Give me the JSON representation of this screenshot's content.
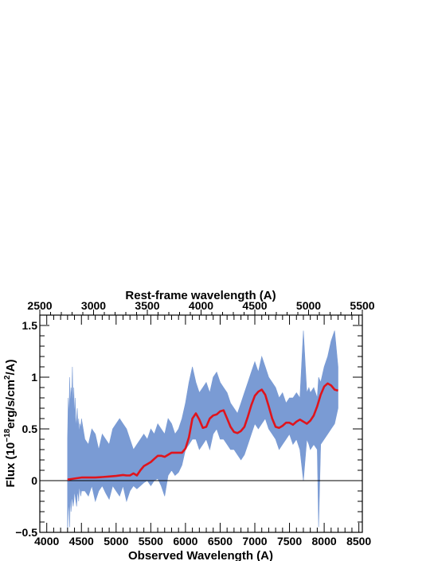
{
  "chart_data": {
    "type": "line",
    "xlabel": "Observed Wavelength (A)",
    "xlabel_top": "Rest-frame wavelength (A)",
    "ylabel_pre": "Flux (10",
    "ylabel_sup1": "−18",
    "ylabel_mid": "erg/s/cm",
    "ylabel_sup2": "2",
    "ylabel_post": "/A)",
    "xlim": [
      3900,
      8550
    ],
    "ylim": [
      -0.5,
      1.6
    ],
    "x2lim": [
      2500,
      5500
    ],
    "xticks": [
      4000,
      4500,
      5000,
      5500,
      6000,
      6500,
      7000,
      7500,
      8000,
      8500
    ],
    "xticklabels": [
      "4000",
      "4500",
      "5000",
      "5500",
      "6000",
      "6500",
      "7000",
      "7500",
      "8000",
      "8500"
    ],
    "x2ticks": [
      2500,
      3000,
      3500,
      4000,
      4500,
      5000,
      5500
    ],
    "x2ticklabels": [
      "2500",
      "3000",
      "3500",
      "4000",
      "4500",
      "5000",
      "5500"
    ],
    "yticks": [
      -0.5,
      0,
      0.5,
      1,
      1.5
    ],
    "yticklabels": [
      "−0.5",
      "0",
      "0.5",
      "1",
      "1.5"
    ],
    "zero_line": 0,
    "colors": {
      "spectrum": "#7a9bd4",
      "model": "#e0141c",
      "axes": "#000000"
    },
    "series": [
      {
        "style": "band",
        "x": [
          4300,
          4310,
          4320,
          4330,
          4340,
          4350,
          4360,
          4370,
          4380,
          4390,
          4400,
          4410,
          4420,
          4430,
          4440,
          4450,
          4460,
          4470,
          4480,
          4490,
          4500,
          4550,
          4600,
          4650,
          4700,
          4750,
          4800,
          4850,
          4900,
          4950,
          5000,
          5050,
          5100,
          5150,
          5200,
          5250,
          5300,
          5350,
          5400,
          5450,
          5500,
          5550,
          5600,
          5650,
          5700,
          5750,
          5800,
          5850,
          5900,
          5950,
          6000,
          6050,
          6100,
          6150,
          6200,
          6250,
          6300,
          6350,
          6400,
          6450,
          6500,
          6550,
          6600,
          6650,
          6700,
          6750,
          6800,
          6850,
          6900,
          6950,
          7000,
          7050,
          7100,
          7150,
          7200,
          7250,
          7300,
          7350,
          7400,
          7450,
          7500,
          7550,
          7600,
          7650,
          7700,
          7750,
          7780,
          7800,
          7850,
          7900,
          7920,
          7950,
          8000,
          8050,
          8100,
          8150,
          8200
        ],
        "y_low": [
          -0.5,
          -0.3,
          -0.2,
          -0.45,
          -0.1,
          -0.3,
          -0.2,
          -0.15,
          -0.25,
          -0.2,
          -0.1,
          -0.15,
          -0.2,
          -0.25,
          -0.15,
          -0.1,
          -0.2,
          -0.05,
          -0.1,
          -0.15,
          -0.1,
          -0.1,
          -0.15,
          -0.05,
          -0.2,
          -0.1,
          -0.05,
          -0.12,
          -0.18,
          -0.05,
          -0.1,
          -0.15,
          -0.05,
          -0.2,
          -0.1,
          -0.05,
          -0.08,
          -0.05,
          -0.02,
          0.0,
          -0.05,
          0.0,
          0.02,
          -0.05,
          -0.15,
          0.05,
          0.1,
          0.05,
          0.08,
          0.15,
          0.3,
          0.35,
          0.4,
          0.4,
          0.3,
          0.35,
          0.4,
          0.3,
          0.45,
          0.5,
          0.4,
          0.4,
          0.35,
          0.3,
          0.3,
          0.25,
          0.2,
          0.25,
          0.35,
          0.45,
          0.55,
          0.5,
          0.55,
          0.6,
          0.5,
          0.45,
          0.4,
          0.3,
          0.35,
          0.4,
          0.45,
          0.35,
          0.4,
          0.3,
          0.0,
          0.4,
          0.35,
          0.3,
          0.35,
          0.3,
          -0.45,
          0.35,
          0.4,
          0.45,
          0.5,
          0.55,
          0.7
        ],
        "y_high": [
          0.4,
          0.8,
          0.6,
          1.0,
          0.7,
          0.9,
          0.8,
          1.1,
          0.7,
          0.9,
          0.6,
          0.8,
          0.5,
          0.6,
          0.7,
          0.5,
          0.6,
          0.45,
          0.55,
          0.5,
          0.6,
          0.4,
          0.35,
          0.5,
          0.45,
          0.3,
          0.45,
          0.4,
          0.35,
          0.5,
          0.55,
          0.6,
          0.55,
          0.5,
          0.4,
          0.3,
          0.35,
          0.4,
          0.45,
          0.4,
          0.5,
          0.45,
          0.55,
          0.5,
          0.45,
          0.6,
          0.55,
          0.45,
          0.5,
          0.6,
          0.75,
          0.95,
          1.1,
          0.95,
          0.85,
          0.9,
          0.95,
          0.85,
          1.0,
          1.05,
          0.95,
          0.9,
          0.85,
          0.75,
          0.7,
          0.65,
          0.75,
          0.85,
          0.95,
          1.05,
          1.15,
          1.05,
          1.2,
          1.1,
          1.0,
          0.95,
          0.9,
          0.8,
          0.85,
          0.75,
          0.8,
          0.8,
          0.85,
          0.8,
          1.45,
          0.85,
          0.9,
          0.85,
          0.9,
          0.8,
          1.0,
          0.95,
          1.1,
          1.2,
          1.35,
          1.45,
          1.1
        ]
      },
      {
        "style": "line",
        "x": [
          4300,
          4400,
          4500,
          4600,
          4700,
          4800,
          4900,
          5000,
          5100,
          5150,
          5200,
          5250,
          5300,
          5350,
          5400,
          5450,
          5500,
          5550,
          5600,
          5650,
          5700,
          5750,
          5800,
          5850,
          5900,
          5950,
          6000,
          6050,
          6100,
          6150,
          6200,
          6250,
          6300,
          6350,
          6400,
          6450,
          6500,
          6550,
          6600,
          6650,
          6700,
          6750,
          6800,
          6850,
          6900,
          6950,
          7000,
          7050,
          7100,
          7150,
          7200,
          7250,
          7300,
          7350,
          7400,
          7450,
          7500,
          7550,
          7600,
          7650,
          7700,
          7750,
          7800,
          7850,
          7900,
          7950,
          8000,
          8050,
          8100,
          8150,
          8200
        ],
        "y": [
          0.01,
          0.02,
          0.03,
          0.03,
          0.03,
          0.035,
          0.04,
          0.045,
          0.055,
          0.05,
          0.05,
          0.07,
          0.05,
          0.1,
          0.14,
          0.16,
          0.18,
          0.21,
          0.24,
          0.24,
          0.23,
          0.25,
          0.27,
          0.27,
          0.27,
          0.27,
          0.31,
          0.42,
          0.6,
          0.65,
          0.59,
          0.51,
          0.52,
          0.6,
          0.63,
          0.64,
          0.67,
          0.68,
          0.6,
          0.52,
          0.47,
          0.46,
          0.48,
          0.52,
          0.62,
          0.73,
          0.82,
          0.86,
          0.88,
          0.83,
          0.72,
          0.6,
          0.52,
          0.51,
          0.53,
          0.56,
          0.56,
          0.54,
          0.57,
          0.59,
          0.57,
          0.55,
          0.58,
          0.63,
          0.72,
          0.83,
          0.91,
          0.94,
          0.92,
          0.88,
          0.87
        ]
      }
    ]
  }
}
